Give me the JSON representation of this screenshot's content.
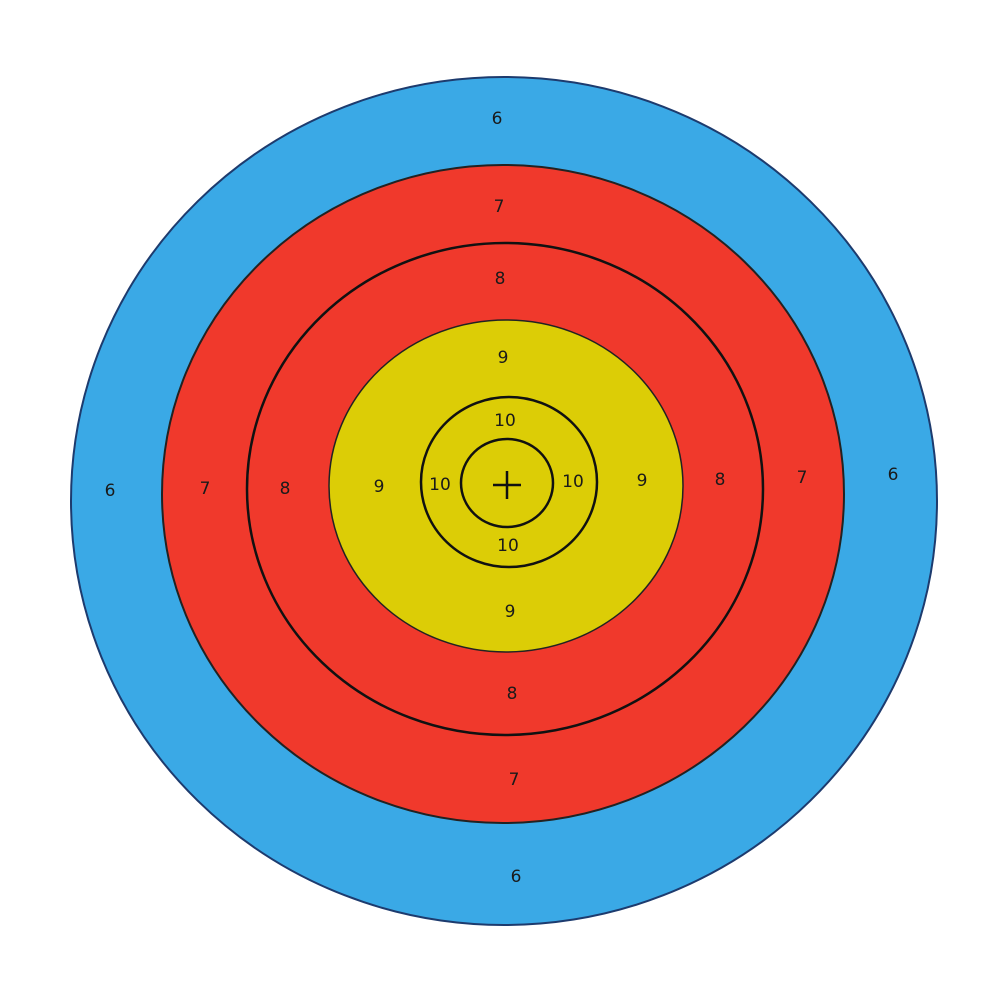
{
  "colors": {
    "blue": "#3aa9e6",
    "red": "#f0392c",
    "yellow": "#dccd06",
    "line": "#111111",
    "background": "#ffffff"
  },
  "rings": {
    "six": "6",
    "seven": "7",
    "eight": "8",
    "nine": "9",
    "ten": "10"
  },
  "center_icon": "plus-crosshair-icon"
}
